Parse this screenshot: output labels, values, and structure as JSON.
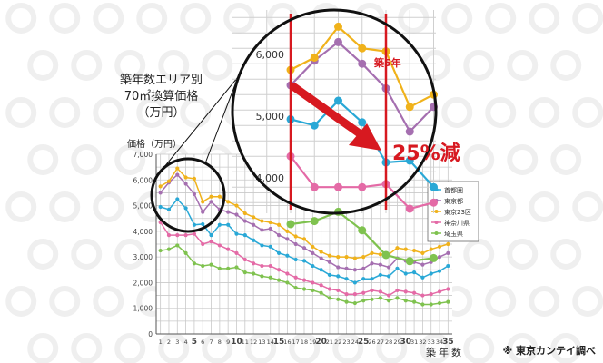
{
  "chart_data": {
    "type": "line",
    "title": "築年数エリア別\n70㎡換算価格\n（万円）",
    "title_lines": [
      "築年数エリア別",
      "70㎡換算価格",
      "（万円）"
    ],
    "ylabel": "価格（万円）",
    "xlabel": "築年数",
    "ylim": [
      0,
      7000
    ],
    "yticks": [
      0,
      1000,
      2000,
      3000,
      4000,
      5000,
      6000,
      7000
    ],
    "ytick_labels": [
      "0",
      "1,000",
      "2,000",
      "3,000",
      "4,000",
      "5,000",
      "6,000",
      "7,000"
    ],
    "x": [
      1,
      2,
      3,
      4,
      5,
      6,
      7,
      8,
      9,
      10,
      11,
      12,
      13,
      14,
      15,
      16,
      17,
      18,
      19,
      20,
      21,
      22,
      23,
      24,
      25,
      26,
      27,
      28,
      29,
      30,
      31,
      32,
      33,
      34,
      35
    ],
    "grid": true,
    "legend": "right",
    "series": [
      {
        "name": "首都圏",
        "color": "#29a8d6",
        "values": [
          4950,
          4850,
          5250,
          4900,
          4250,
          4280,
          3850,
          4250,
          4250,
          3900,
          3850,
          3650,
          3450,
          3400,
          3150,
          3050,
          2900,
          2850,
          2650,
          2500,
          2300,
          2250,
          2150,
          2000,
          2150,
          2150,
          2300,
          2250,
          2550,
          2350,
          2400,
          2200,
          2350,
          2450,
          2650
        ]
      },
      {
        "name": "東京都",
        "color": "#a56fb0",
        "values": [
          5500,
          5900,
          6200,
          5850,
          5450,
          4750,
          5150,
          4850,
          4750,
          4650,
          4400,
          4250,
          4050,
          4100,
          3850,
          3700,
          3500,
          3350,
          3150,
          2950,
          2800,
          2600,
          2550,
          2500,
          2550,
          2750,
          2700,
          2600,
          2950,
          2850,
          2800,
          2700,
          2800,
          3000,
          3150
        ]
      },
      {
        "name": "東京23区",
        "color": "#f0b21b",
        "values": [
          5750,
          5950,
          6450,
          6100,
          6050,
          5150,
          5350,
          5350,
          5150,
          5000,
          4700,
          4550,
          4400,
          4350,
          4250,
          4000,
          3800,
          3700,
          3400,
          3200,
          3050,
          3000,
          3000,
          2950,
          3000,
          3150,
          3100,
          3100,
          3350,
          3300,
          3250,
          3150,
          3300,
          3400,
          3500
        ]
      },
      {
        "name": "神奈川県",
        "color": "#e46aa6",
        "values": [
          4350,
          3850,
          3850,
          3850,
          3900,
          3500,
          3600,
          3450,
          3300,
          3150,
          2900,
          2750,
          2650,
          2650,
          2500,
          2350,
          2200,
          2100,
          2000,
          1900,
          1750,
          1700,
          1550,
          1550,
          1600,
          1700,
          1650,
          1500,
          1700,
          1650,
          1600,
          1500,
          1550,
          1650,
          1750
        ]
      },
      {
        "name": "埼玉県",
        "color": "#7fc24f",
        "values": [
          3250,
          3300,
          3450,
          3150,
          2750,
          2650,
          2700,
          2550,
          2550,
          2600,
          2400,
          2350,
          2250,
          2200,
          2100,
          2000,
          1800,
          1750,
          1700,
          1600,
          1400,
          1350,
          1250,
          1200,
          1300,
          1350,
          1400,
          1300,
          1400,
          1300,
          1250,
          1150,
          1150,
          1200,
          1250
        ]
      }
    ],
    "inset": {
      "x_range": [
        1,
        6
      ],
      "ylim": [
        3600,
        6600
      ],
      "yticks": [
        4000,
        5000,
        6000
      ],
      "ytick_labels": [
        "4,000",
        "5,000",
        "6,000"
      ],
      "marker_years": [
        1,
        5
      ],
      "marker_label": "築5年",
      "callout": "25%減"
    },
    "note": "※ 東京カンテイ調べ"
  }
}
